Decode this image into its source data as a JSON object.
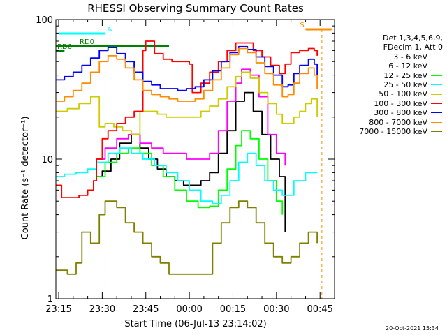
{
  "chart_data": {
    "type": "line",
    "title": "RHESSI Observing Summary Count Rates",
    "xlabel": "Start Time (06-Jul-13 23:14:02)",
    "ylabel": "Count Rate (s⁻¹ detector⁻¹)",
    "y_scale": "log",
    "ylim": [
      1,
      100
    ],
    "xlim": [
      "23:14:02",
      "00:50:00"
    ],
    "x_unit": "time (HH:MM)",
    "y_tick_labels": [
      "1",
      "10",
      "100"
    ],
    "x_tick_labels": [
      "23:15",
      "23:30",
      "23:45",
      "00:00",
      "00:15",
      "00:30",
      "00:45"
    ],
    "legend_header": [
      "Det 1,3,4,5,6,9,",
      "FDecim 1, Att 0"
    ],
    "legend_position": "right, outside plot",
    "footer_timestamp": "20-Oct-2021 15:34",
    "flags": [
      {
        "label": "N",
        "color": "#00ffff",
        "from": "23:15",
        "to": "23:31"
      },
      {
        "label": "S",
        "color": "#ff8c00",
        "from": "00:40",
        "to": "00:49"
      },
      {
        "label": "RD0",
        "color": "#008000",
        "from": "23:14",
        "to": "23:53"
      },
      {
        "label": "RD6",
        "color": "#008000",
        "from": "23:14",
        "to": "23:17"
      }
    ],
    "series": [
      {
        "name": "3 - 6 keV",
        "color": "#000000",
        "x": [
          "23:28",
          "23:30",
          "23:33",
          "23:36",
          "23:40",
          "23:43",
          "23:46",
          "23:49",
          "23:52",
          "23:55",
          "23:58",
          "00:01",
          "00:04",
          "00:07",
          "00:10",
          "00:13",
          "00:16",
          "00:19",
          "00:22",
          "00:25",
          "00:28",
          "00:31",
          "00:33"
        ],
        "y": [
          7.5,
          8.2,
          10,
          13,
          15,
          12,
          10,
          8.5,
          7.5,
          7,
          6.5,
          6.5,
          7,
          8,
          11,
          16,
          26,
          30,
          22,
          15,
          10,
          7.5,
          3
        ]
      },
      {
        "name": "6 - 12 keV",
        "color": "#ff00ff",
        "x": [
          "23:28",
          "23:31",
          "23:35",
          "23:39",
          "23:43",
          "23:47",
          "23:51",
          "23:55",
          "23:59",
          "00:03",
          "00:07",
          "00:10",
          "00:13",
          "00:16",
          "00:18",
          "00:21",
          "00:24",
          "00:27",
          "00:30",
          "00:33"
        ],
        "y": [
          10,
          12,
          14,
          15,
          13,
          12,
          11,
          11,
          10,
          10,
          11,
          16,
          26,
          35,
          44,
          40,
          28,
          15,
          11,
          9
        ]
      },
      {
        "name": "12 - 25 keV",
        "color": "#00ff00",
        "x": [
          "23:28",
          "23:31",
          "23:35",
          "23:39",
          "23:43",
          "23:47",
          "23:51",
          "23:55",
          "23:59",
          "00:03",
          "00:07",
          "00:10",
          "00:13",
          "00:16",
          "00:18",
          "00:21",
          "00:24",
          "00:27",
          "00:30",
          "00:32"
        ],
        "y": [
          7.5,
          9.5,
          11,
          12,
          11,
          9,
          7.5,
          6,
          5,
          4.5,
          4.6,
          6,
          8.5,
          12.5,
          16,
          14,
          10,
          7,
          5,
          4
        ]
      },
      {
        "name": "25 - 50 keV",
        "color": "#00ffff",
        "x": [
          "23:14",
          "23:17",
          "23:21",
          "23:25",
          "23:28",
          "23:32",
          "23:36",
          "23:40",
          "23:44",
          "23:48",
          "23:52",
          "23:56",
          "00:00",
          "00:04",
          "00:08",
          "00:11",
          "00:14",
          "00:17",
          "00:20",
          "00:23",
          "00:26",
          "00:29",
          "00:32",
          "00:36",
          "00:40",
          "00:44"
        ],
        "y": [
          7.5,
          7.8,
          8,
          8.5,
          9.5,
          11,
          12,
          11,
          10,
          9,
          8,
          7,
          6,
          5,
          4.8,
          5.5,
          7,
          9.5,
          11,
          9,
          7,
          6,
          5.5,
          7,
          8,
          8
        ]
      },
      {
        "name": "50 - 100 keV",
        "color": "#cccc00",
        "x": [
          "23:14",
          "23:18",
          "23:22",
          "23:26",
          "23:29",
          "23:31",
          "23:34",
          "23:37",
          "23:40",
          "23:43",
          "23:46",
          "23:49",
          "23:52",
          "23:55",
          "23:58",
          "00:01",
          "00:04",
          "00:07",
          "00:10",
          "00:13",
          "00:16",
          "00:18",
          "00:21",
          "00:24",
          "00:27",
          "00:30",
          "00:32",
          "00:34",
          "00:36",
          "00:38",
          "00:40",
          "00:42",
          "00:44"
        ],
        "y": [
          22,
          23,
          25,
          28,
          17,
          18,
          17,
          16,
          15,
          22,
          22,
          21,
          20,
          20,
          20,
          20,
          22,
          24,
          27,
          33,
          39,
          42,
          38,
          30,
          25,
          21,
          18,
          18,
          20,
          22,
          25,
          27,
          20
        ]
      },
      {
        "name": "100 - 300 keV",
        "color": "#ff0000",
        "x": [
          "23:14",
          "23:16",
          "23:19",
          "23:22",
          "23:25",
          "23:27",
          "23:28",
          "23:30",
          "23:32",
          "23:35",
          "23:38",
          "23:41",
          "23:44",
          "23:45",
          "23:48",
          "23:51",
          "23:54",
          "23:57",
          "00:00",
          "00:01",
          "00:04",
          "00:07",
          "00:10",
          "00:13",
          "00:16",
          "00:19",
          "00:22",
          "00:25",
          "00:28",
          "00:31",
          "00:33",
          "00:35",
          "00:38",
          "00:41",
          "00:43",
          "00:44"
        ],
        "y": [
          6.5,
          5.3,
          5.3,
          5.5,
          6,
          7,
          10,
          14,
          16,
          18,
          20,
          22,
          60,
          70,
          57,
          52,
          50,
          50,
          48,
          30,
          35,
          42,
          50,
          60,
          68,
          68,
          60,
          54,
          47,
          41,
          48,
          58,
          60,
          62,
          60,
          55
        ]
      },
      {
        "name": "300 - 800 keV",
        "color": "#0000ff",
        "x": [
          "23:14",
          "23:17",
          "23:20",
          "23:23",
          "23:26",
          "23:29",
          "23:32",
          "23:35",
          "23:38",
          "23:41",
          "23:44",
          "23:47",
          "23:50",
          "23:53",
          "23:56",
          "23:59",
          "00:02",
          "00:05",
          "00:08",
          "00:11",
          "00:14",
          "00:17",
          "00:20",
          "00:23",
          "00:26",
          "00:29",
          "00:32",
          "00:34",
          "00:36",
          "00:38",
          "00:41",
          "00:43",
          "00:44"
        ],
        "y": [
          37,
          39,
          42,
          47,
          53,
          60,
          63,
          57,
          50,
          42,
          36,
          34,
          32,
          32,
          31,
          32,
          33,
          37,
          43,
          50,
          58,
          64,
          61,
          54,
          46,
          40,
          33,
          34,
          41,
          47,
          52,
          48,
          40
        ]
      },
      {
        "name": "800 - 7000 keV",
        "color": "#ff8c00",
        "x": [
          "23:14",
          "23:17",
          "23:20",
          "23:23",
          "23:26",
          "23:29",
          "23:32",
          "23:35",
          "23:38",
          "23:41",
          "23:44",
          "23:47",
          "23:50",
          "23:53",
          "23:56",
          "23:59",
          "00:02",
          "00:05",
          "00:08",
          "00:11",
          "00:14",
          "00:17",
          "00:20",
          "00:23",
          "00:26",
          "00:29",
          "00:32",
          "00:34",
          "00:36",
          "00:38",
          "00:41",
          "00:43",
          "00:44"
        ],
        "y": [
          26,
          28,
          31,
          35,
          42,
          50,
          55,
          52,
          45,
          37,
          31,
          29,
          28,
          27,
          26,
          26,
          27,
          31,
          37,
          45,
          56,
          62,
          58,
          49,
          41,
          34,
          28,
          29,
          35,
          41,
          45,
          40,
          32
        ]
      },
      {
        "name": "7000 - 15000 keV",
        "color": "#808000",
        "x": [
          "23:14",
          "23:18",
          "23:21",
          "23:23",
          "23:26",
          "23:29",
          "23:31",
          "23:35",
          "23:38",
          "23:41",
          "23:44",
          "23:47",
          "23:50",
          "23:53",
          "23:56",
          "23:59",
          "00:02",
          "00:05",
          "00:08",
          "00:11",
          "00:14",
          "00:17",
          "00:20",
          "00:23",
          "00:26",
          "00:29",
          "00:32",
          "00:35",
          "00:38",
          "00:41",
          "00:44"
        ],
        "y": [
          1.6,
          1.5,
          1.8,
          3,
          2.5,
          4,
          5,
          4.5,
          3.5,
          3,
          2.5,
          2,
          1.8,
          1.5,
          1.5,
          1.5,
          1.5,
          1.5,
          2.5,
          3.5,
          4.5,
          5,
          4.5,
          3.5,
          2.5,
          2,
          1.8,
          2,
          2.5,
          3,
          2.5
        ]
      }
    ]
  }
}
